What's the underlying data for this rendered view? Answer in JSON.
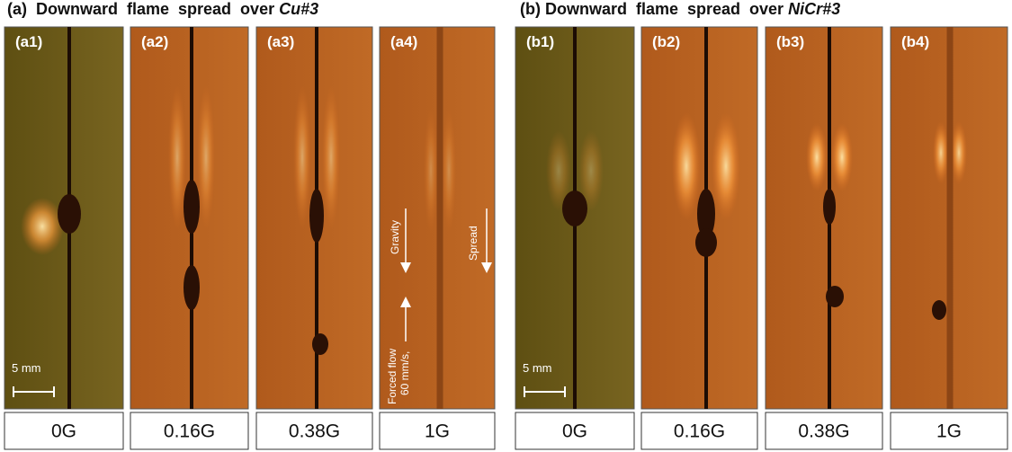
{
  "panels": [
    {
      "title": "(a)  Downward  flame  spread  over",
      "title_material": "Cu#3",
      "scale_label": "5 mm",
      "frames": [
        {
          "label": "(a1)",
          "gravity": "0G"
        },
        {
          "label": "(a2)",
          "gravity": "0.16G"
        },
        {
          "label": "(a3)",
          "gravity": "0.38G"
        },
        {
          "label": "(a4)",
          "gravity": "1G"
        }
      ],
      "annotations": {
        "gravity": "Gravity",
        "spread": "Spread",
        "flow": "Forced flow",
        "flow_speed": "60 mm/s,"
      }
    },
    {
      "title": "(b) Downward  flame  spread  over",
      "title_material": "NiCr#3",
      "scale_label": "5 mm",
      "frames": [
        {
          "label": "(b1)",
          "gravity": "0G"
        },
        {
          "label": "(b2)",
          "gravity": "0.16G"
        },
        {
          "label": "(b3)",
          "gravity": "0.38G"
        },
        {
          "label": "(b4)",
          "gravity": "1G"
        }
      ]
    }
  ]
}
